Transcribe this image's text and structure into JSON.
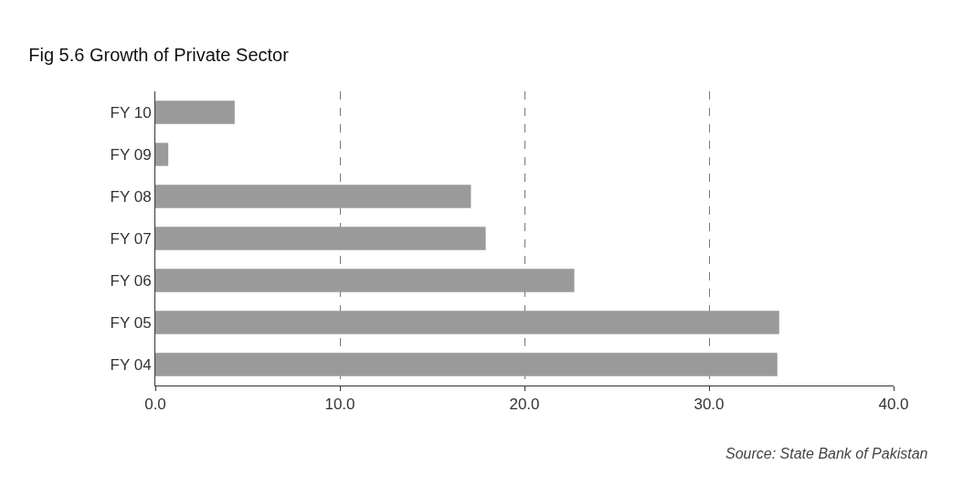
{
  "chart_data": {
    "type": "bar",
    "orientation": "horizontal",
    "title": "Fig 5.6 Growth of Private Sector",
    "categories": [
      "FY 10",
      "FY 09",
      "FY 08",
      "FY 07",
      "FY 06",
      "FY 05",
      "FY 04"
    ],
    "values": [
      4.3,
      0.7,
      17.1,
      17.9,
      22.7,
      33.8,
      33.7
    ],
    "color": "#9a9a9a",
    "xlim": [
      0,
      40
    ],
    "xticks": [
      {
        "value": 0,
        "label": "0.0"
      },
      {
        "value": 10,
        "label": "10.0"
      },
      {
        "value": 20,
        "label": "20.0"
      },
      {
        "value": 30,
        "label": "30.0"
      },
      {
        "value": 40,
        "label": "40.0"
      }
    ],
    "grid": "x",
    "annotations": [
      "Source: State Bank of Pakistan"
    ]
  }
}
